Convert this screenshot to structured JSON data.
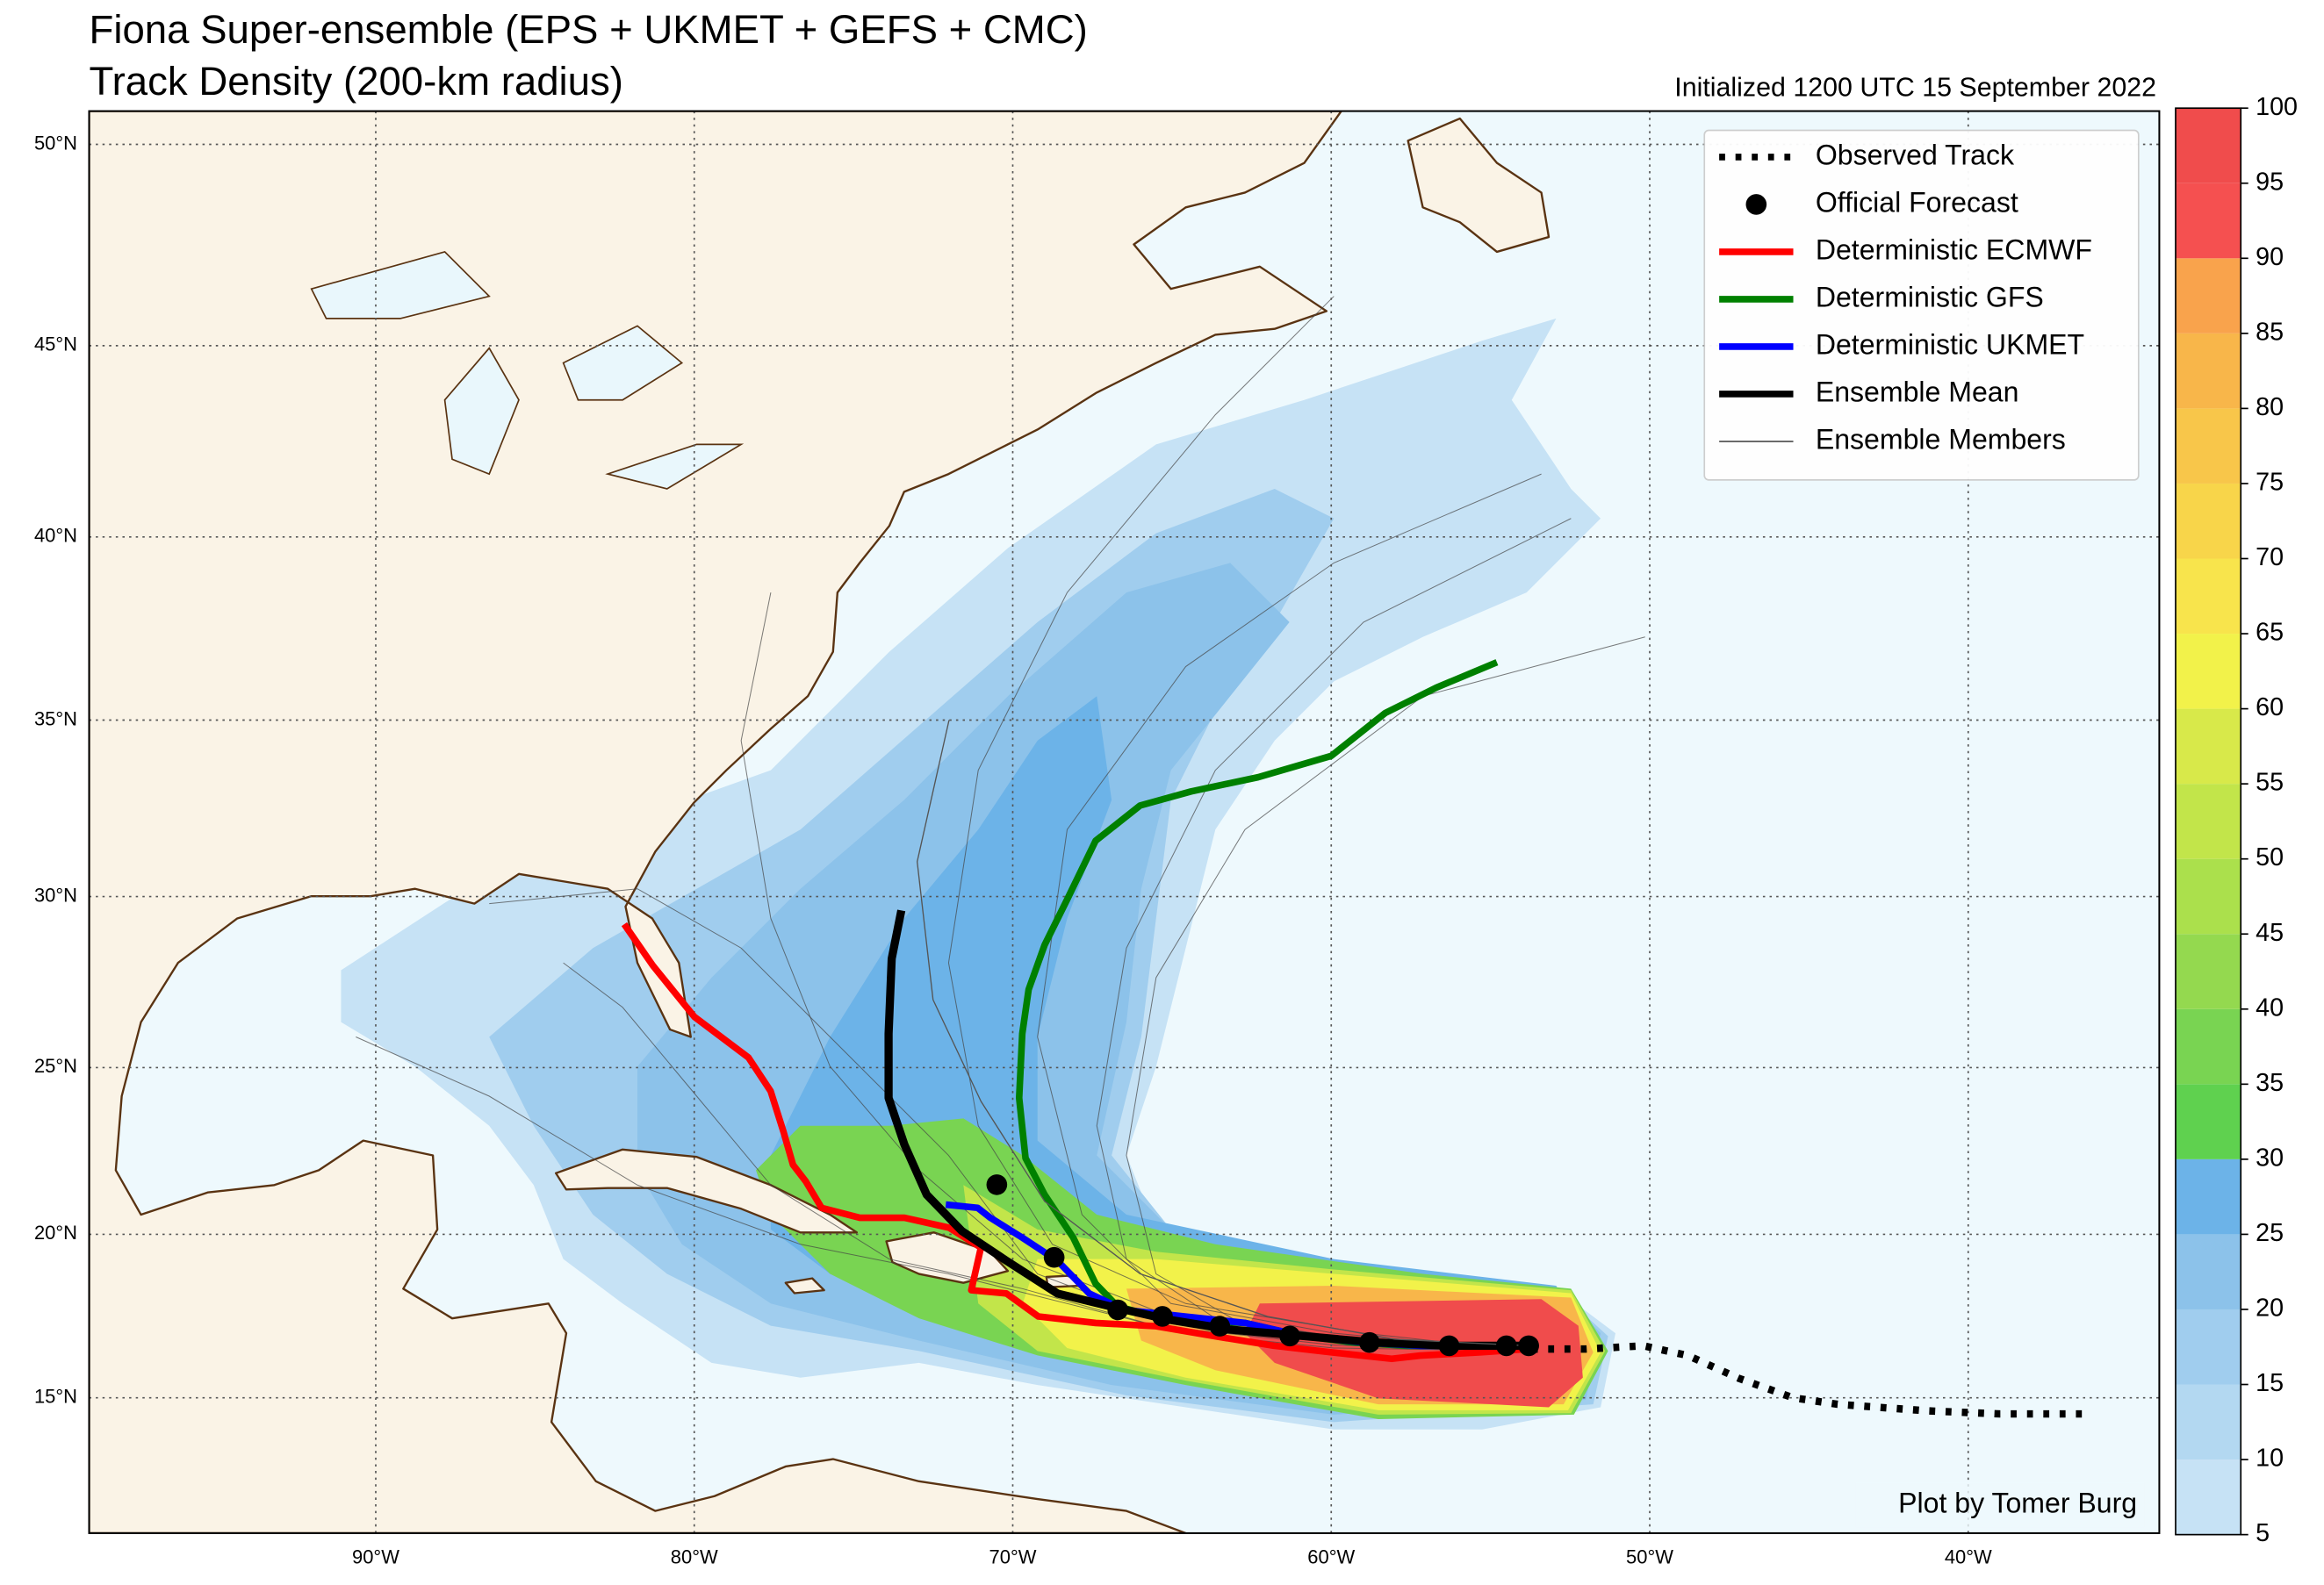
{
  "title": [
    "Fiona Super-ensemble (EPS + UKMET + GEFS + CMC)",
    "Track Density (200-km radius)"
  ],
  "initialized": "Initialized 1200 UTC 15 September 2022",
  "credit": "Plot by Tomer Burg",
  "map": {
    "projection": "miller",
    "xlim": [
      -99,
      -34
    ],
    "ylim": [
      10.8,
      50.8
    ],
    "grid": true,
    "xticks": [
      {
        "value": -90,
        "label": "90°W"
      },
      {
        "value": -80,
        "label": "80°W"
      },
      {
        "value": -70,
        "label": "70°W"
      },
      {
        "value": -60,
        "label": "60°W"
      },
      {
        "value": -50,
        "label": "50°W"
      },
      {
        "value": -40,
        "label": "40°W"
      }
    ],
    "yticks": [
      {
        "value": 15,
        "label": "15°N"
      },
      {
        "value": 20,
        "label": "20°N"
      },
      {
        "value": 25,
        "label": "25°N"
      },
      {
        "value": 30,
        "label": "30°N"
      },
      {
        "value": 35,
        "label": "35°N"
      },
      {
        "value": 40,
        "label": "40°N"
      },
      {
        "value": 45,
        "label": "45°N"
      },
      {
        "value": 50,
        "label": "50°N"
      }
    ]
  },
  "legend": {
    "position": "upper right"
  },
  "tracks": [
    {
      "name": "Observed Track",
      "color": "#000000",
      "style": "dotted",
      "lon": [
        -53.7,
        -52.0,
        -50.2,
        -48.8,
        -47.2,
        -45.5,
        -44.1,
        -41.3,
        -39.0,
        -36.2
      ],
      "lat": [
        16.5,
        16.5,
        16.6,
        16.3,
        15.6,
        15.0,
        14.8,
        14.6,
        14.5,
        14.5
      ]
    },
    {
      "name": "Official Forecast",
      "color": "#000000",
      "style": "dots",
      "lon": [
        -53.8,
        -54.5,
        -56.3,
        -58.8,
        -61.3,
        -63.5,
        -65.3,
        -66.7,
        -68.7,
        -70.5
      ],
      "lat": [
        16.6,
        16.6,
        16.6,
        16.7,
        16.9,
        17.2,
        17.5,
        17.7,
        19.3,
        21.5
      ]
    },
    {
      "name": "Deterministic ECMWF",
      "color": "#ff0000",
      "style": "line",
      "lon": [
        -53.8,
        -55.3,
        -57.2,
        -58.1,
        -60.0,
        -61.8,
        -63.7,
        -65.5,
        -67.4,
        -69.2,
        -70.2,
        -71.3,
        -71.0,
        -72.0,
        -73.4,
        -74.8,
        -76.0,
        -76.5,
        -76.9,
        -77.2,
        -77.6,
        -78.3,
        -80.0,
        -81.3,
        -82.2
      ],
      "lat": [
        16.5,
        16.4,
        16.3,
        16.2,
        16.4,
        16.6,
        16.9,
        17.2,
        17.3,
        17.5,
        18.2,
        18.3,
        19.6,
        20.2,
        20.5,
        20.5,
        20.8,
        21.6,
        22.1,
        23.1,
        24.3,
        25.3,
        26.5,
        28.0,
        29.2
      ]
    },
    {
      "name": "Deterministic GFS",
      "color": "#008000",
      "style": "line",
      "lon": [
        -54.8,
        -56.7,
        -58.3,
        -60.0,
        -62.3,
        -64.4,
        -66.0,
        -67.4,
        -68.3,
        -69.0,
        -69.5,
        -69.7,
        -69.8,
        -69.6,
        -69.0,
        -68.1,
        -67.4,
        -66.7,
        -65.1,
        -62.7,
        -60.9,
        -59.3,
        -57.6,
        -55.3
      ],
      "lat": [
        36.6,
        35.9,
        35.2,
        34.0,
        33.4,
        33.0,
        32.6,
        31.6,
        29.9,
        28.6,
        27.3,
        26.0,
        24.1,
        22.3,
        21.2,
        19.9,
        18.5,
        17.8,
        17.4,
        17.3,
        16.9,
        16.7,
        16.6,
        16.6
      ]
    },
    {
      "name": "Deterministic UKMET",
      "color": "#0000ff",
      "style": "line",
      "lon": [
        -53.8,
        -55.3,
        -57.2,
        -59.0,
        -60.9,
        -62.7,
        -64.6,
        -66.5,
        -67.6,
        -68.6,
        -69.7,
        -70.7,
        -71.1,
        -72.1
      ],
      "lat": [
        16.6,
        16.6,
        16.6,
        16.7,
        16.9,
        17.3,
        17.5,
        17.7,
        18.2,
        19.2,
        19.9,
        20.5,
        20.8,
        20.9
      ]
    },
    {
      "name": "Ensemble Mean",
      "color": "#000000",
      "style": "mean",
      "lon": [
        -53.8,
        -56.2,
        -58.6,
        -60.9,
        -63.2,
        -65.1,
        -66.9,
        -68.6,
        -70.2,
        -71.6,
        -72.7,
        -73.4,
        -73.9,
        -73.9,
        -73.8,
        -73.5
      ],
      "lat": [
        16.6,
        16.6,
        16.7,
        16.9,
        17.1,
        17.4,
        17.8,
        18.2,
        19.2,
        20.1,
        21.2,
        22.7,
        24.1,
        26.0,
        28.2,
        29.6
      ]
    },
    {
      "name": "Ensemble Members",
      "color": "#555555",
      "style": "member",
      "lon": [
        -53.8,
        -58.0,
        -62.0,
        -66.0,
        -69.0,
        -71.0,
        -72.5,
        -73.0,
        -72.0
      ],
      "lat": [
        16.6,
        16.8,
        17.5,
        18.8,
        21.0,
        24.0,
        27.0,
        31.0,
        35.0
      ]
    }
  ],
  "colorbar": {
    "ticks": [
      5,
      10,
      15,
      20,
      25,
      30,
      35,
      40,
      45,
      50,
      55,
      60,
      65,
      70,
      75,
      80,
      85,
      90,
      95,
      100
    ],
    "colors": [
      "#c6e2f5",
      "#b3d8f1",
      "#a0cdee",
      "#8cc2ea",
      "#6cb3e8",
      "#5fd14f",
      "#79d452",
      "#94d94f",
      "#abe04c",
      "#c2e54a",
      "#d8e94a",
      "#f2f24a",
      "#f8e44c",
      "#f8d54a",
      "#f8c64a",
      "#f8b64a",
      "#f9a34c",
      "#f55050",
      "#f04c4c"
    ]
  }
}
